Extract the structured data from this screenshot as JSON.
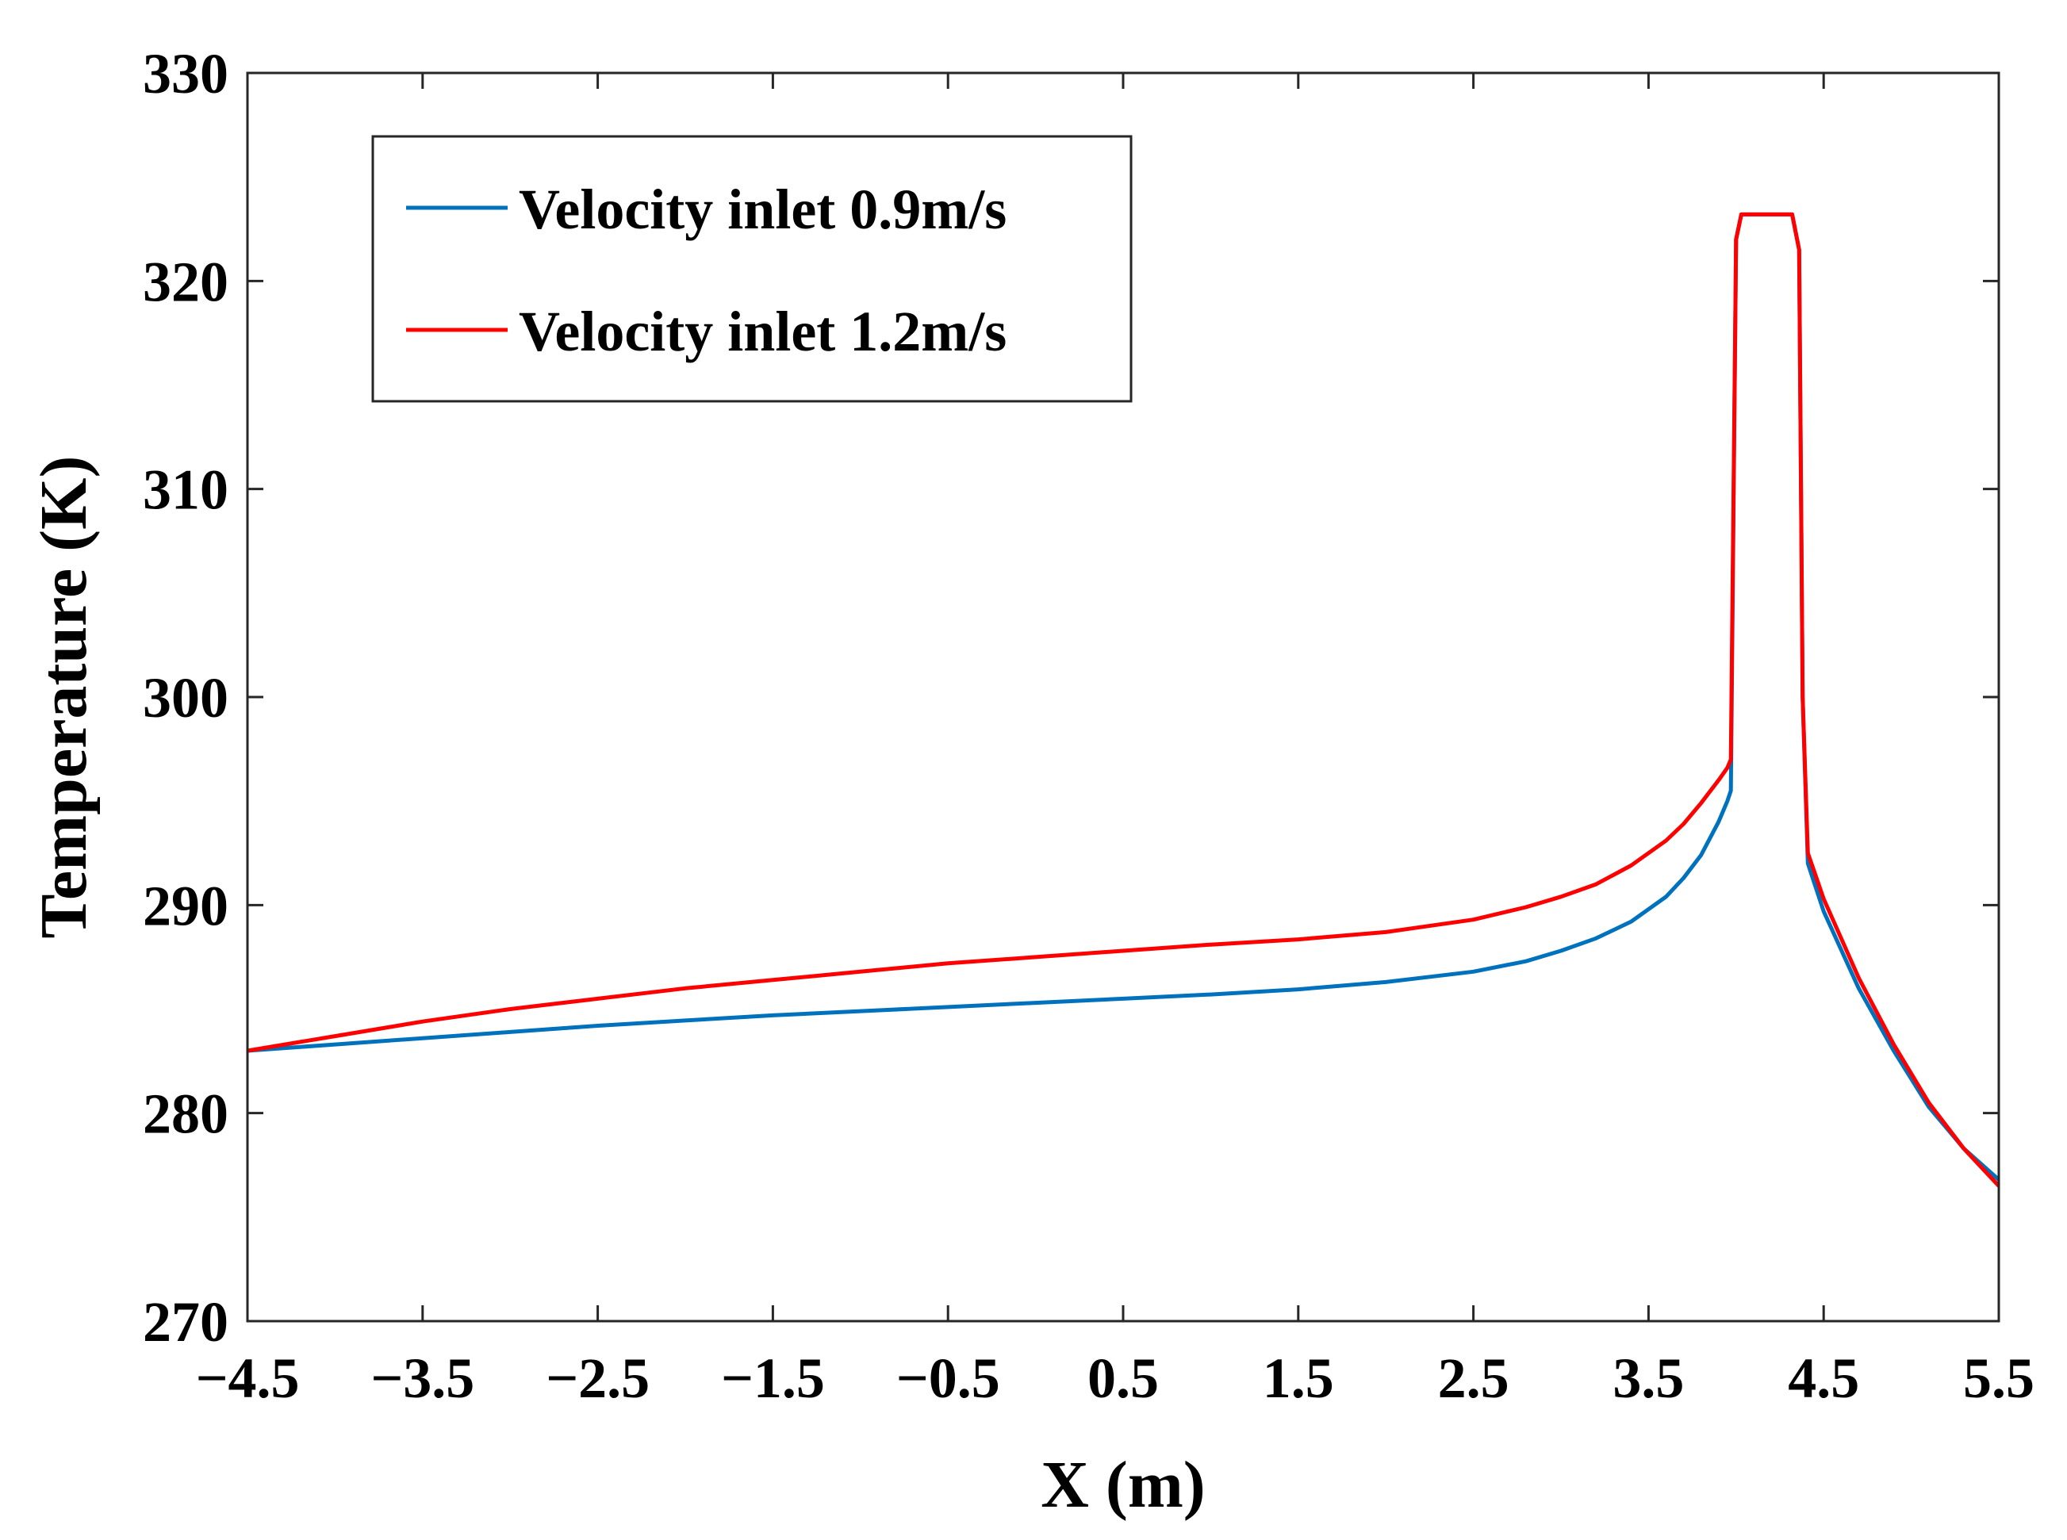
{
  "chart_data": {
    "type": "line",
    "title": "",
    "xlabel": "X (m)",
    "ylabel": "Temperature (K)",
    "xlim": [
      -4.5,
      5.5
    ],
    "ylim": [
      270,
      330
    ],
    "xticks": [
      -4.5,
      -3.5,
      -2.5,
      -1.5,
      -0.5,
      0.5,
      1.5,
      2.5,
      3.5,
      4.5,
      5.5
    ],
    "xtick_labels": [
      "−4.5",
      "−3.5",
      "−2.5",
      "−1.5",
      "−0.5",
      "0.5",
      "1.5",
      "2.5",
      "3.5",
      "4.5",
      "5.5"
    ],
    "yticks": [
      270,
      280,
      290,
      300,
      310,
      320,
      330
    ],
    "ytick_labels": [
      "270",
      "280",
      "290",
      "300",
      "310",
      "320",
      "330"
    ],
    "grid": false,
    "legend_position": "top-left",
    "series": [
      {
        "name": "Velocity inlet 0.9m/s",
        "color": "#0072BD",
        "x": [
          -4.5,
          -4.0,
          -3.5,
          -3.0,
          -2.5,
          -2.0,
          -1.5,
          -1.0,
          -0.5,
          0.0,
          0.5,
          1.0,
          1.5,
          2.0,
          2.5,
          2.8,
          3.0,
          3.2,
          3.4,
          3.6,
          3.7,
          3.8,
          3.9,
          3.95,
          3.97,
          4.0,
          4.03,
          4.1,
          4.2,
          4.32,
          4.36,
          4.38,
          4.41,
          4.5,
          4.7,
          4.9,
          5.1,
          5.3,
          5.5
        ],
        "values": [
          283.0,
          283.3,
          283.6,
          283.9,
          284.2,
          284.45,
          284.7,
          284.9,
          285.1,
          285.3,
          285.5,
          285.7,
          285.95,
          286.3,
          286.8,
          287.3,
          287.8,
          288.4,
          289.2,
          290.4,
          291.3,
          292.4,
          294.0,
          295.0,
          295.5,
          322.0,
          323.2,
          323.2,
          323.2,
          323.2,
          321.5,
          300.0,
          292.0,
          289.7,
          286.0,
          283.0,
          280.3,
          278.3,
          276.8
        ]
      },
      {
        "name": "Velocity inlet 1.2m/s",
        "color": "#FF0000",
        "x": [
          -4.5,
          -4.0,
          -3.5,
          -3.0,
          -2.5,
          -2.0,
          -1.5,
          -1.0,
          -0.5,
          0.0,
          0.5,
          1.0,
          1.5,
          2.0,
          2.5,
          2.8,
          3.0,
          3.2,
          3.4,
          3.6,
          3.7,
          3.8,
          3.9,
          3.95,
          3.97,
          4.0,
          4.03,
          4.1,
          4.2,
          4.32,
          4.36,
          4.38,
          4.41,
          4.5,
          4.7,
          4.9,
          5.1,
          5.3,
          5.5
        ],
        "values": [
          283.0,
          283.7,
          284.4,
          285.0,
          285.5,
          286.0,
          286.4,
          286.8,
          287.2,
          287.5,
          287.8,
          288.1,
          288.35,
          288.7,
          289.3,
          289.9,
          290.4,
          291.0,
          291.9,
          293.1,
          293.9,
          294.9,
          296.0,
          296.6,
          297.0,
          322.0,
          323.2,
          323.2,
          323.2,
          323.2,
          321.5,
          300.0,
          292.5,
          290.3,
          286.5,
          283.3,
          280.5,
          278.3,
          276.5
        ]
      }
    ]
  }
}
